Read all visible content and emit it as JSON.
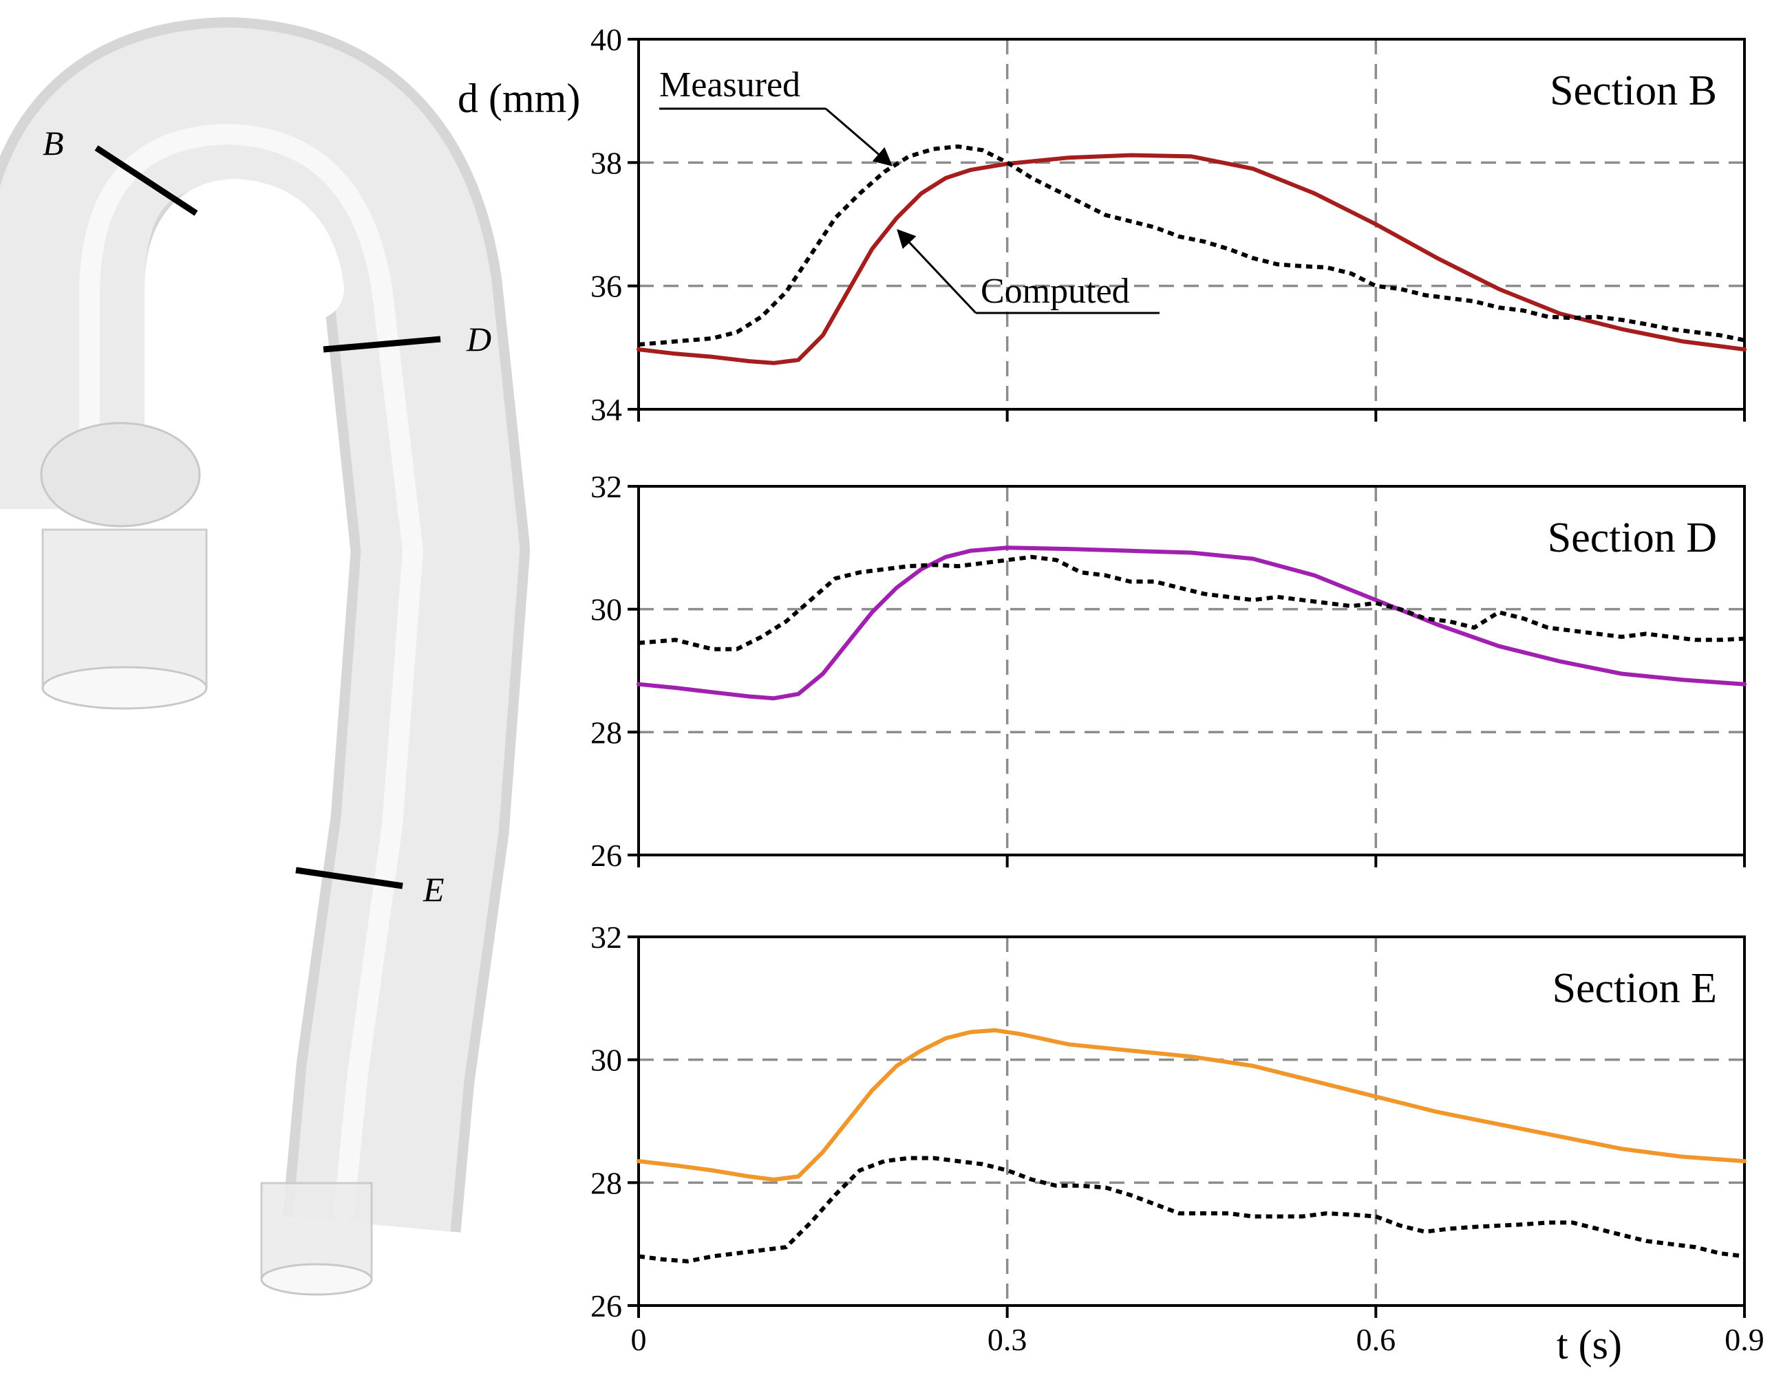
{
  "model": {
    "section_labels": [
      "B",
      "D",
      "E"
    ]
  },
  "shared_axis": {
    "xlabel": "t (s)",
    "ylabel": "d (mm)",
    "xlim": [
      0,
      0.9
    ],
    "xticks": [
      0,
      0.3,
      0.6,
      0.9
    ],
    "xtick_labels": [
      "0",
      "0.3",
      "0.6",
      "0.9"
    ]
  },
  "annotations": {
    "measured": "Measured",
    "computed": "Computed"
  },
  "colors": {
    "section_b": "#a51d1d",
    "section_d": "#a020b0",
    "section_e": "#f0962a",
    "measured": "#000000",
    "grid": "#8c8c8c"
  },
  "chart_data": [
    {
      "type": "line",
      "title": "Section B",
      "xlabel": "t (s)",
      "ylabel": "d (mm)",
      "xlim": [
        0,
        0.9
      ],
      "ylim": [
        34,
        40
      ],
      "yticks": [
        34,
        36,
        38,
        40
      ],
      "grid": true,
      "series": [
        {
          "name": "Computed",
          "style": "solid",
          "color": "#a51d1d",
          "x": [
            0,
            0.03,
            0.06,
            0.09,
            0.11,
            0.13,
            0.15,
            0.17,
            0.19,
            0.21,
            0.23,
            0.25,
            0.27,
            0.3,
            0.35,
            0.4,
            0.45,
            0.5,
            0.55,
            0.6,
            0.65,
            0.7,
            0.75,
            0.8,
            0.85,
            0.9
          ],
          "y": [
            34.97,
            34.9,
            34.85,
            34.78,
            34.75,
            34.8,
            35.2,
            35.9,
            36.6,
            37.1,
            37.5,
            37.75,
            37.88,
            37.98,
            38.08,
            38.12,
            38.1,
            37.9,
            37.5,
            37.0,
            36.45,
            35.95,
            35.55,
            35.3,
            35.1,
            34.97
          ]
        },
        {
          "name": "Measured",
          "style": "dotted",
          "color": "#000000",
          "x": [
            0,
            0.03,
            0.06,
            0.08,
            0.1,
            0.12,
            0.14,
            0.16,
            0.18,
            0.2,
            0.22,
            0.24,
            0.26,
            0.28,
            0.3,
            0.32,
            0.34,
            0.36,
            0.38,
            0.4,
            0.42,
            0.44,
            0.46,
            0.48,
            0.5,
            0.52,
            0.54,
            0.56,
            0.58,
            0.6,
            0.62,
            0.64,
            0.66,
            0.68,
            0.7,
            0.72,
            0.74,
            0.76,
            0.78,
            0.8,
            0.82,
            0.84,
            0.86,
            0.88,
            0.9
          ],
          "y": [
            35.05,
            35.1,
            35.15,
            35.25,
            35.5,
            35.9,
            36.5,
            37.1,
            37.5,
            37.85,
            38.1,
            38.22,
            38.26,
            38.2,
            38.0,
            37.75,
            37.55,
            37.35,
            37.15,
            37.05,
            36.95,
            36.8,
            36.72,
            36.6,
            36.45,
            36.35,
            36.32,
            36.3,
            36.2,
            36.0,
            35.95,
            35.85,
            35.8,
            35.75,
            35.65,
            35.6,
            35.5,
            35.48,
            35.5,
            35.45,
            35.38,
            35.3,
            35.25,
            35.2,
            35.12
          ]
        }
      ]
    },
    {
      "type": "line",
      "title": "Section D",
      "xlim": [
        0,
        0.9
      ],
      "ylim": [
        26,
        32
      ],
      "yticks": [
        26,
        28,
        30,
        32
      ],
      "grid": true,
      "series": [
        {
          "style": "solid",
          "color": "#a020b0",
          "x": [
            0,
            0.03,
            0.06,
            0.09,
            0.11,
            0.13,
            0.15,
            0.17,
            0.19,
            0.21,
            0.23,
            0.25,
            0.27,
            0.3,
            0.35,
            0.4,
            0.45,
            0.5,
            0.55,
            0.6,
            0.65,
            0.7,
            0.75,
            0.8,
            0.85,
            0.9
          ],
          "y": [
            28.78,
            28.72,
            28.65,
            28.58,
            28.55,
            28.62,
            28.95,
            29.45,
            29.95,
            30.35,
            30.65,
            30.85,
            30.95,
            31.0,
            30.98,
            30.95,
            30.92,
            30.82,
            30.55,
            30.15,
            29.75,
            29.4,
            29.15,
            28.95,
            28.85,
            28.78
          ]
        },
        {
          "style": "dotted",
          "color": "#000000",
          "x": [
            0,
            0.03,
            0.06,
            0.08,
            0.1,
            0.12,
            0.14,
            0.16,
            0.18,
            0.2,
            0.22,
            0.24,
            0.26,
            0.28,
            0.3,
            0.32,
            0.34,
            0.36,
            0.38,
            0.4,
            0.42,
            0.44,
            0.46,
            0.48,
            0.5,
            0.52,
            0.54,
            0.56,
            0.58,
            0.6,
            0.62,
            0.64,
            0.66,
            0.68,
            0.7,
            0.72,
            0.74,
            0.76,
            0.78,
            0.8,
            0.82,
            0.84,
            0.86,
            0.88,
            0.9
          ],
          "y": [
            29.45,
            29.5,
            29.35,
            29.35,
            29.55,
            29.8,
            30.15,
            30.5,
            30.6,
            30.65,
            30.7,
            30.72,
            30.7,
            30.75,
            30.8,
            30.85,
            30.8,
            30.6,
            30.55,
            30.45,
            30.45,
            30.35,
            30.25,
            30.2,
            30.15,
            30.2,
            30.15,
            30.1,
            30.05,
            30.1,
            30.0,
            29.85,
            29.8,
            29.7,
            29.95,
            29.85,
            29.7,
            29.65,
            29.6,
            29.55,
            29.6,
            29.55,
            29.5,
            29.5,
            29.52
          ]
        }
      ]
    },
    {
      "type": "line",
      "title": "Section E",
      "xlim": [
        0,
        0.9
      ],
      "ylim": [
        26,
        32
      ],
      "yticks": [
        26,
        28,
        30,
        32
      ],
      "grid": true,
      "series": [
        {
          "style": "solid",
          "color": "#f0962a",
          "x": [
            0,
            0.03,
            0.06,
            0.09,
            0.11,
            0.13,
            0.15,
            0.17,
            0.19,
            0.21,
            0.23,
            0.25,
            0.27,
            0.29,
            0.31,
            0.35,
            0.4,
            0.45,
            0.5,
            0.55,
            0.6,
            0.65,
            0.7,
            0.75,
            0.8,
            0.85,
            0.9
          ],
          "y": [
            28.35,
            28.28,
            28.2,
            28.1,
            28.05,
            28.1,
            28.5,
            29.0,
            29.5,
            29.9,
            30.15,
            30.35,
            30.45,
            30.48,
            30.42,
            30.25,
            30.15,
            30.05,
            29.9,
            29.65,
            29.4,
            29.15,
            28.95,
            28.75,
            28.55,
            28.42,
            28.35
          ]
        },
        {
          "style": "dotted",
          "color": "#000000",
          "x": [
            0,
            0.02,
            0.04,
            0.06,
            0.08,
            0.1,
            0.12,
            0.14,
            0.16,
            0.18,
            0.2,
            0.22,
            0.24,
            0.26,
            0.28,
            0.3,
            0.32,
            0.34,
            0.36,
            0.38,
            0.4,
            0.42,
            0.44,
            0.46,
            0.48,
            0.5,
            0.52,
            0.54,
            0.56,
            0.58,
            0.6,
            0.62,
            0.64,
            0.66,
            0.68,
            0.7,
            0.72,
            0.74,
            0.76,
            0.78,
            0.8,
            0.82,
            0.84,
            0.86,
            0.88,
            0.9
          ],
          "y": [
            26.8,
            26.75,
            26.72,
            26.8,
            26.85,
            26.9,
            26.95,
            27.35,
            27.8,
            28.2,
            28.35,
            28.4,
            28.4,
            28.35,
            28.3,
            28.2,
            28.05,
            27.95,
            27.95,
            27.92,
            27.8,
            27.65,
            27.5,
            27.5,
            27.5,
            27.45,
            27.45,
            27.45,
            27.5,
            27.48,
            27.45,
            27.3,
            27.2,
            27.25,
            27.28,
            27.3,
            27.32,
            27.35,
            27.35,
            27.25,
            27.15,
            27.05,
            27.0,
            26.95,
            26.85,
            26.8
          ]
        }
      ]
    }
  ]
}
